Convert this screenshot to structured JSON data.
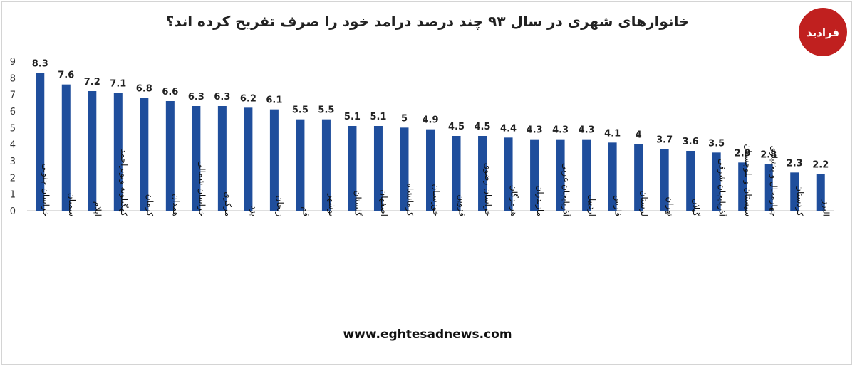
{
  "title": "خانوارهای شهری در سال ۹۳ چند درصد درامد خود را صرف تفریح کرده اند؟",
  "website": "www.eghtesadnews.com",
  "logo": {
    "text": "فرادید",
    "color": "#c0201f"
  },
  "chart_data": {
    "type": "bar",
    "title": "خانوارهای شهری در سال ۹۳ چند درصد درامد خود را صرف تفریح کرده اند؟",
    "xlabel": "",
    "ylabel": "",
    "ylim": [
      0,
      9
    ],
    "yticks": [
      "0",
      "1",
      "2",
      "3",
      "4",
      "5",
      "6",
      "7",
      "8",
      "9"
    ],
    "grid": false,
    "legend": "none",
    "bar_color": "#1f4e9c",
    "categories": [
      "خراسان جنوبی",
      "سمنان",
      "ایلام",
      "کهگیلویه وبویراحمد",
      "کرمان",
      "همدان",
      "خراسان شمالی",
      "مرکزی",
      "یزد",
      "زنجان",
      "قم",
      "بوشهر",
      "گلستان",
      "اصفهان",
      "کرمانشاه",
      "خوزستان",
      "قزوین",
      "خراسان رضوی",
      "هرمزگان",
      "مازندران",
      "آذربایجان غربی",
      "اردبیل",
      "فارس",
      "لرستان",
      "تهران",
      "گیلان",
      "آذربایجان شرقی",
      "سیستان و بلوچستان",
      "چهارمحال و بختیاری",
      "کردستان",
      "البرز"
    ],
    "values": [
      8.3,
      7.6,
      7.2,
      7.1,
      6.8,
      6.6,
      6.3,
      6.3,
      6.2,
      6.1,
      5.5,
      5.5,
      5.1,
      5.1,
      5,
      4.9,
      4.5,
      4.5,
      4.4,
      4.3,
      4.3,
      4.3,
      4.1,
      4,
      3.7,
      3.6,
      3.5,
      2.9,
      2.8,
      2.3,
      2.2
    ],
    "value_labels": [
      "8.3",
      "7.6",
      "7.2",
      "7.1",
      "6.8",
      "6.6",
      "6.3",
      "6.3",
      "6.2",
      "6.1",
      "5.5",
      "5.5",
      "5.1",
      "5.1",
      "5",
      "4.9",
      "4.5",
      "4.5",
      "4.4",
      "4.3",
      "4.3",
      "4.3",
      "4.1",
      "4",
      "3.7",
      "3.6",
      "3.5",
      "2.9",
      "2.8",
      "2.3",
      "2.2"
    ]
  }
}
